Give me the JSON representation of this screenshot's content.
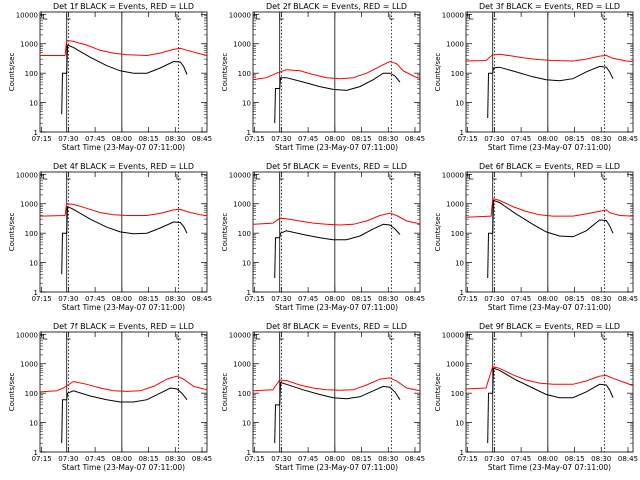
{
  "chart_data": {
    "type": "line",
    "x_ticks": [
      "07:15",
      "07:30",
      "07:45",
      "08:00",
      "08:15",
      "08:30",
      "08:45"
    ],
    "y_ticks": [
      "1",
      "10",
      "100",
      "1000",
      "10000"
    ],
    "ylim": [
      1,
      12000
    ],
    "y_scale": "log",
    "ylabel": "Counts/sec",
    "xlabel": "Start Time (23-May-07 07:11:00)",
    "grid": false,
    "colors": {
      "events": "#000000",
      "lld": "#ff0000"
    },
    "panels": [
      {
        "title": "Det 1f BLACK = Events, RED = LLD",
        "red": [
          [
            0,
            400
          ],
          [
            15,
            400
          ],
          [
            16,
            1300
          ],
          [
            20,
            1200
          ],
          [
            28,
            900
          ],
          [
            36,
            600
          ],
          [
            44,
            480
          ],
          [
            52,
            420
          ],
          [
            64,
            400
          ],
          [
            72,
            480
          ],
          [
            80,
            640
          ],
          [
            84,
            700
          ],
          [
            88,
            600
          ],
          [
            96,
            450
          ],
          [
            100,
            400
          ]
        ],
        "black": [
          [
            13,
            4
          ],
          [
            13.5,
            100
          ],
          [
            16,
            100
          ],
          [
            16.5,
            900
          ],
          [
            20,
            750
          ],
          [
            30,
            350
          ],
          [
            40,
            180
          ],
          [
            48,
            120
          ],
          [
            56,
            100
          ],
          [
            64,
            100
          ],
          [
            72,
            150
          ],
          [
            80,
            250
          ],
          [
            84,
            240
          ],
          [
            86,
            170
          ],
          [
            88,
            90
          ]
        ]
      },
      {
        "title": "Det 2f BLACK = Events, RED = LLD",
        "red": [
          [
            0,
            60
          ],
          [
            8,
            70
          ],
          [
            14,
            100
          ],
          [
            20,
            130
          ],
          [
            28,
            120
          ],
          [
            36,
            90
          ],
          [
            44,
            70
          ],
          [
            52,
            65
          ],
          [
            60,
            70
          ],
          [
            68,
            100
          ],
          [
            76,
            170
          ],
          [
            82,
            250
          ],
          [
            86,
            210
          ],
          [
            90,
            120
          ],
          [
            96,
            80
          ],
          [
            100,
            65
          ]
        ],
        "black": [
          [
            13,
            2
          ],
          [
            13.5,
            30
          ],
          [
            16,
            30
          ],
          [
            16.5,
            70
          ],
          [
            20,
            70
          ],
          [
            30,
            50
          ],
          [
            40,
            35
          ],
          [
            48,
            28
          ],
          [
            56,
            26
          ],
          [
            64,
            35
          ],
          [
            72,
            60
          ],
          [
            78,
            100
          ],
          [
            82,
            100
          ],
          [
            85,
            80
          ],
          [
            88,
            50
          ]
        ]
      },
      {
        "title": "Det 3f BLACK = Events, RED = LLD",
        "red": [
          [
            0,
            260
          ],
          [
            12,
            270
          ],
          [
            16,
            420
          ],
          [
            20,
            440
          ],
          [
            28,
            380
          ],
          [
            36,
            320
          ],
          [
            44,
            290
          ],
          [
            52,
            270
          ],
          [
            64,
            260
          ],
          [
            72,
            300
          ],
          [
            80,
            380
          ],
          [
            84,
            400
          ],
          [
            88,
            320
          ],
          [
            96,
            260
          ],
          [
            100,
            250
          ]
        ],
        "black": [
          [
            13,
            3
          ],
          [
            13.5,
            100
          ],
          [
            16,
            100
          ],
          [
            16.5,
            150
          ],
          [
            20,
            160
          ],
          [
            30,
            110
          ],
          [
            40,
            75
          ],
          [
            48,
            60
          ],
          [
            56,
            55
          ],
          [
            64,
            65
          ],
          [
            72,
            110
          ],
          [
            80,
            170
          ],
          [
            84,
            160
          ],
          [
            86,
            110
          ],
          [
            88,
            65
          ]
        ]
      },
      {
        "title": "Det 4f BLACK = Events, RED = LLD",
        "red": [
          [
            0,
            380
          ],
          [
            15,
            400
          ],
          [
            16,
            1000
          ],
          [
            20,
            950
          ],
          [
            28,
            700
          ],
          [
            36,
            500
          ],
          [
            44,
            420
          ],
          [
            52,
            400
          ],
          [
            64,
            400
          ],
          [
            72,
            470
          ],
          [
            80,
            620
          ],
          [
            84,
            650
          ],
          [
            88,
            540
          ],
          [
            96,
            420
          ],
          [
            100,
            390
          ]
        ],
        "black": [
          [
            13,
            4
          ],
          [
            13.5,
            100
          ],
          [
            16,
            100
          ],
          [
            16.5,
            800
          ],
          [
            20,
            650
          ],
          [
            30,
            300
          ],
          [
            40,
            160
          ],
          [
            48,
            110
          ],
          [
            56,
            95
          ],
          [
            64,
            100
          ],
          [
            72,
            150
          ],
          [
            80,
            240
          ],
          [
            84,
            230
          ],
          [
            86,
            170
          ],
          [
            88,
            100
          ]
        ]
      },
      {
        "title": "Det 5f BLACK = Events, RED = LLD",
        "red": [
          [
            0,
            200
          ],
          [
            12,
            220
          ],
          [
            16,
            320
          ],
          [
            20,
            310
          ],
          [
            28,
            260
          ],
          [
            36,
            220
          ],
          [
            44,
            200
          ],
          [
            52,
            190
          ],
          [
            60,
            200
          ],
          [
            68,
            260
          ],
          [
            76,
            400
          ],
          [
            82,
            480
          ],
          [
            86,
            400
          ],
          [
            92,
            260
          ],
          [
            100,
            210
          ]
        ],
        "black": [
          [
            13,
            3
          ],
          [
            13.5,
            70
          ],
          [
            16,
            70
          ],
          [
            16.5,
            100
          ],
          [
            20,
            120
          ],
          [
            30,
            90
          ],
          [
            40,
            70
          ],
          [
            48,
            60
          ],
          [
            56,
            60
          ],
          [
            64,
            80
          ],
          [
            72,
            140
          ],
          [
            78,
            200
          ],
          [
            82,
            190
          ],
          [
            85,
            140
          ],
          [
            88,
            90
          ]
        ]
      },
      {
        "title": "Det 6f BLACK = Events, RED = LLD",
        "red": [
          [
            0,
            350
          ],
          [
            15,
            380
          ],
          [
            16,
            1500
          ],
          [
            20,
            1300
          ],
          [
            28,
            800
          ],
          [
            36,
            550
          ],
          [
            44,
            420
          ],
          [
            52,
            380
          ],
          [
            64,
            380
          ],
          [
            72,
            450
          ],
          [
            80,
            560
          ],
          [
            84,
            620
          ],
          [
            86,
            500
          ],
          [
            92,
            400
          ],
          [
            100,
            380
          ]
        ],
        "black": [
          [
            13,
            3
          ],
          [
            13.5,
            100
          ],
          [
            16,
            100
          ],
          [
            16.5,
            1300
          ],
          [
            20,
            1100
          ],
          [
            30,
            450
          ],
          [
            40,
            200
          ],
          [
            48,
            110
          ],
          [
            56,
            80
          ],
          [
            64,
            75
          ],
          [
            72,
            120
          ],
          [
            80,
            280
          ],
          [
            84,
            270
          ],
          [
            86,
            180
          ],
          [
            88,
            100
          ]
        ]
      },
      {
        "title": "Det 7f BLACK = Events, RED = LLD",
        "red": [
          [
            0,
            110
          ],
          [
            10,
            120
          ],
          [
            14,
            150
          ],
          [
            20,
            250
          ],
          [
            28,
            200
          ],
          [
            36,
            150
          ],
          [
            44,
            120
          ],
          [
            52,
            115
          ],
          [
            60,
            120
          ],
          [
            68,
            170
          ],
          [
            76,
            300
          ],
          [
            82,
            380
          ],
          [
            86,
            300
          ],
          [
            92,
            170
          ],
          [
            100,
            130
          ]
        ],
        "black": [
          [
            13,
            2
          ],
          [
            13.5,
            60
          ],
          [
            16,
            60
          ],
          [
            16.5,
            100
          ],
          [
            20,
            120
          ],
          [
            30,
            80
          ],
          [
            40,
            60
          ],
          [
            48,
            50
          ],
          [
            56,
            50
          ],
          [
            64,
            60
          ],
          [
            72,
            100
          ],
          [
            78,
            150
          ],
          [
            82,
            140
          ],
          [
            85,
            100
          ],
          [
            88,
            60
          ]
        ]
      },
      {
        "title": "Det 8f BLACK = Events, RED = LLD",
        "red": [
          [
            0,
            120
          ],
          [
            12,
            130
          ],
          [
            16,
            280
          ],
          [
            20,
            270
          ],
          [
            28,
            190
          ],
          [
            36,
            150
          ],
          [
            44,
            130
          ],
          [
            52,
            125
          ],
          [
            60,
            130
          ],
          [
            68,
            190
          ],
          [
            76,
            300
          ],
          [
            82,
            330
          ],
          [
            86,
            260
          ],
          [
            92,
            150
          ],
          [
            100,
            120
          ]
        ],
        "black": [
          [
            13,
            2
          ],
          [
            13.5,
            40
          ],
          [
            16,
            40
          ],
          [
            16.5,
            230
          ],
          [
            20,
            200
          ],
          [
            30,
            130
          ],
          [
            40,
            90
          ],
          [
            48,
            70
          ],
          [
            56,
            65
          ],
          [
            64,
            75
          ],
          [
            72,
            120
          ],
          [
            78,
            170
          ],
          [
            82,
            160
          ],
          [
            85,
            110
          ],
          [
            88,
            60
          ]
        ]
      },
      {
        "title": "Det 9f BLACK = Events, RED = LLD",
        "red": [
          [
            0,
            140
          ],
          [
            12,
            150
          ],
          [
            16,
            800
          ],
          [
            20,
            700
          ],
          [
            28,
            420
          ],
          [
            36,
            280
          ],
          [
            44,
            220
          ],
          [
            52,
            200
          ],
          [
            64,
            200
          ],
          [
            72,
            260
          ],
          [
            80,
            380
          ],
          [
            84,
            400
          ],
          [
            88,
            320
          ],
          [
            96,
            220
          ],
          [
            100,
            180
          ]
        ],
        "black": [
          [
            13,
            2
          ],
          [
            13.5,
            100
          ],
          [
            16,
            100
          ],
          [
            16.5,
            700
          ],
          [
            20,
            600
          ],
          [
            30,
            280
          ],
          [
            40,
            150
          ],
          [
            48,
            90
          ],
          [
            56,
            70
          ],
          [
            64,
            70
          ],
          [
            72,
            110
          ],
          [
            80,
            200
          ],
          [
            84,
            190
          ],
          [
            86,
            130
          ],
          [
            88,
            70
          ]
        ]
      }
    ]
  }
}
